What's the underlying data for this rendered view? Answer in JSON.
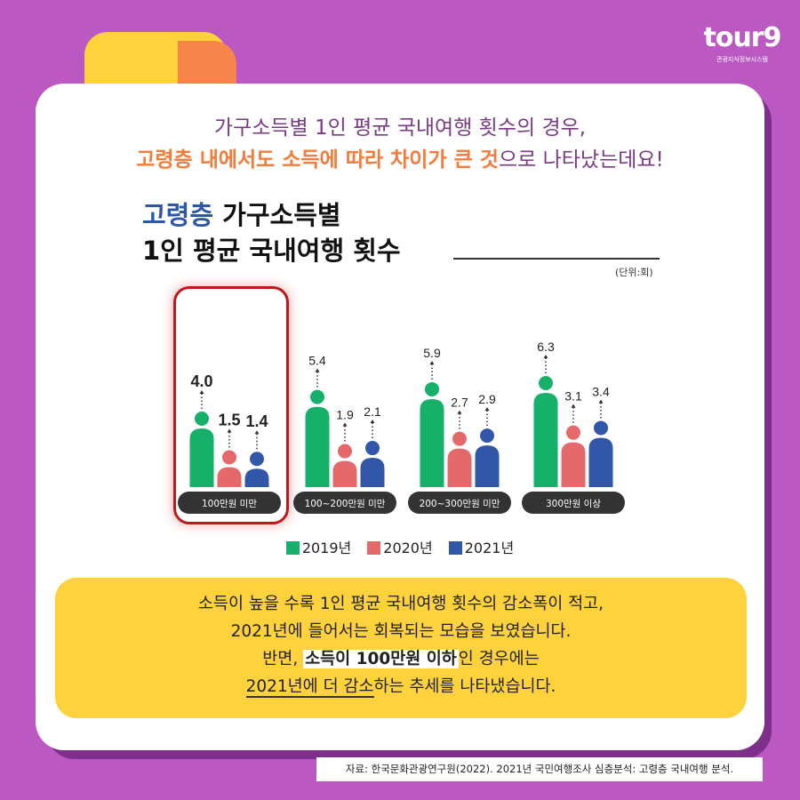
{
  "logo": {
    "mark": "tour9",
    "sub": "관광지식정보시스템"
  },
  "headline": {
    "line1": "가구소득별 1인 평균 국내여행 횟수의 경우,",
    "line2_emph": "고령층 내에서도 소득에 따라 차이가 큰 것",
    "line2_rest": "으로 나타났는데요!"
  },
  "chart_data": {
    "type": "bar",
    "title_emph": "고령층",
    "title_rest": "가구소득별",
    "title_line2": "1인 평균 국내여행 횟수",
    "unit": "(단위:회)",
    "categories": [
      "100만원 미만",
      "100~200만원 미만",
      "200~300만원 미만",
      "300만원 이상"
    ],
    "series": [
      {
        "name": "2019년",
        "color": "#17b06b",
        "values": [
          4.0,
          5.4,
          5.9,
          6.3
        ]
      },
      {
        "name": "2020년",
        "color": "#e5696a",
        "values": [
          1.5,
          1.9,
          2.7,
          3.1
        ]
      },
      {
        "name": "2021년",
        "color": "#3357a8",
        "values": [
          1.4,
          2.1,
          2.9,
          3.4
        ]
      }
    ],
    "highlighted_category": "100만원 미만",
    "legend_position": "bottom"
  },
  "summary": {
    "l1": "소득이 높을 수록 1인 평균 국내여행 횟수의 감소폭이 적고,",
    "l2": "2021년에 들어서는 회복되는 모습을 보였습니다.",
    "l3a": "반면, ",
    "l3b": "소득이 100만원 이하",
    "l3c": "인 경우에는",
    "l4a": "2021년에 더 감소",
    "l4b": "하는 추세를 나타냈습니다."
  },
  "source": "자료: 한국문화관광연구원(2022). 2021년 국민여행조사 심층분석: 고령층 국내여행 분석."
}
